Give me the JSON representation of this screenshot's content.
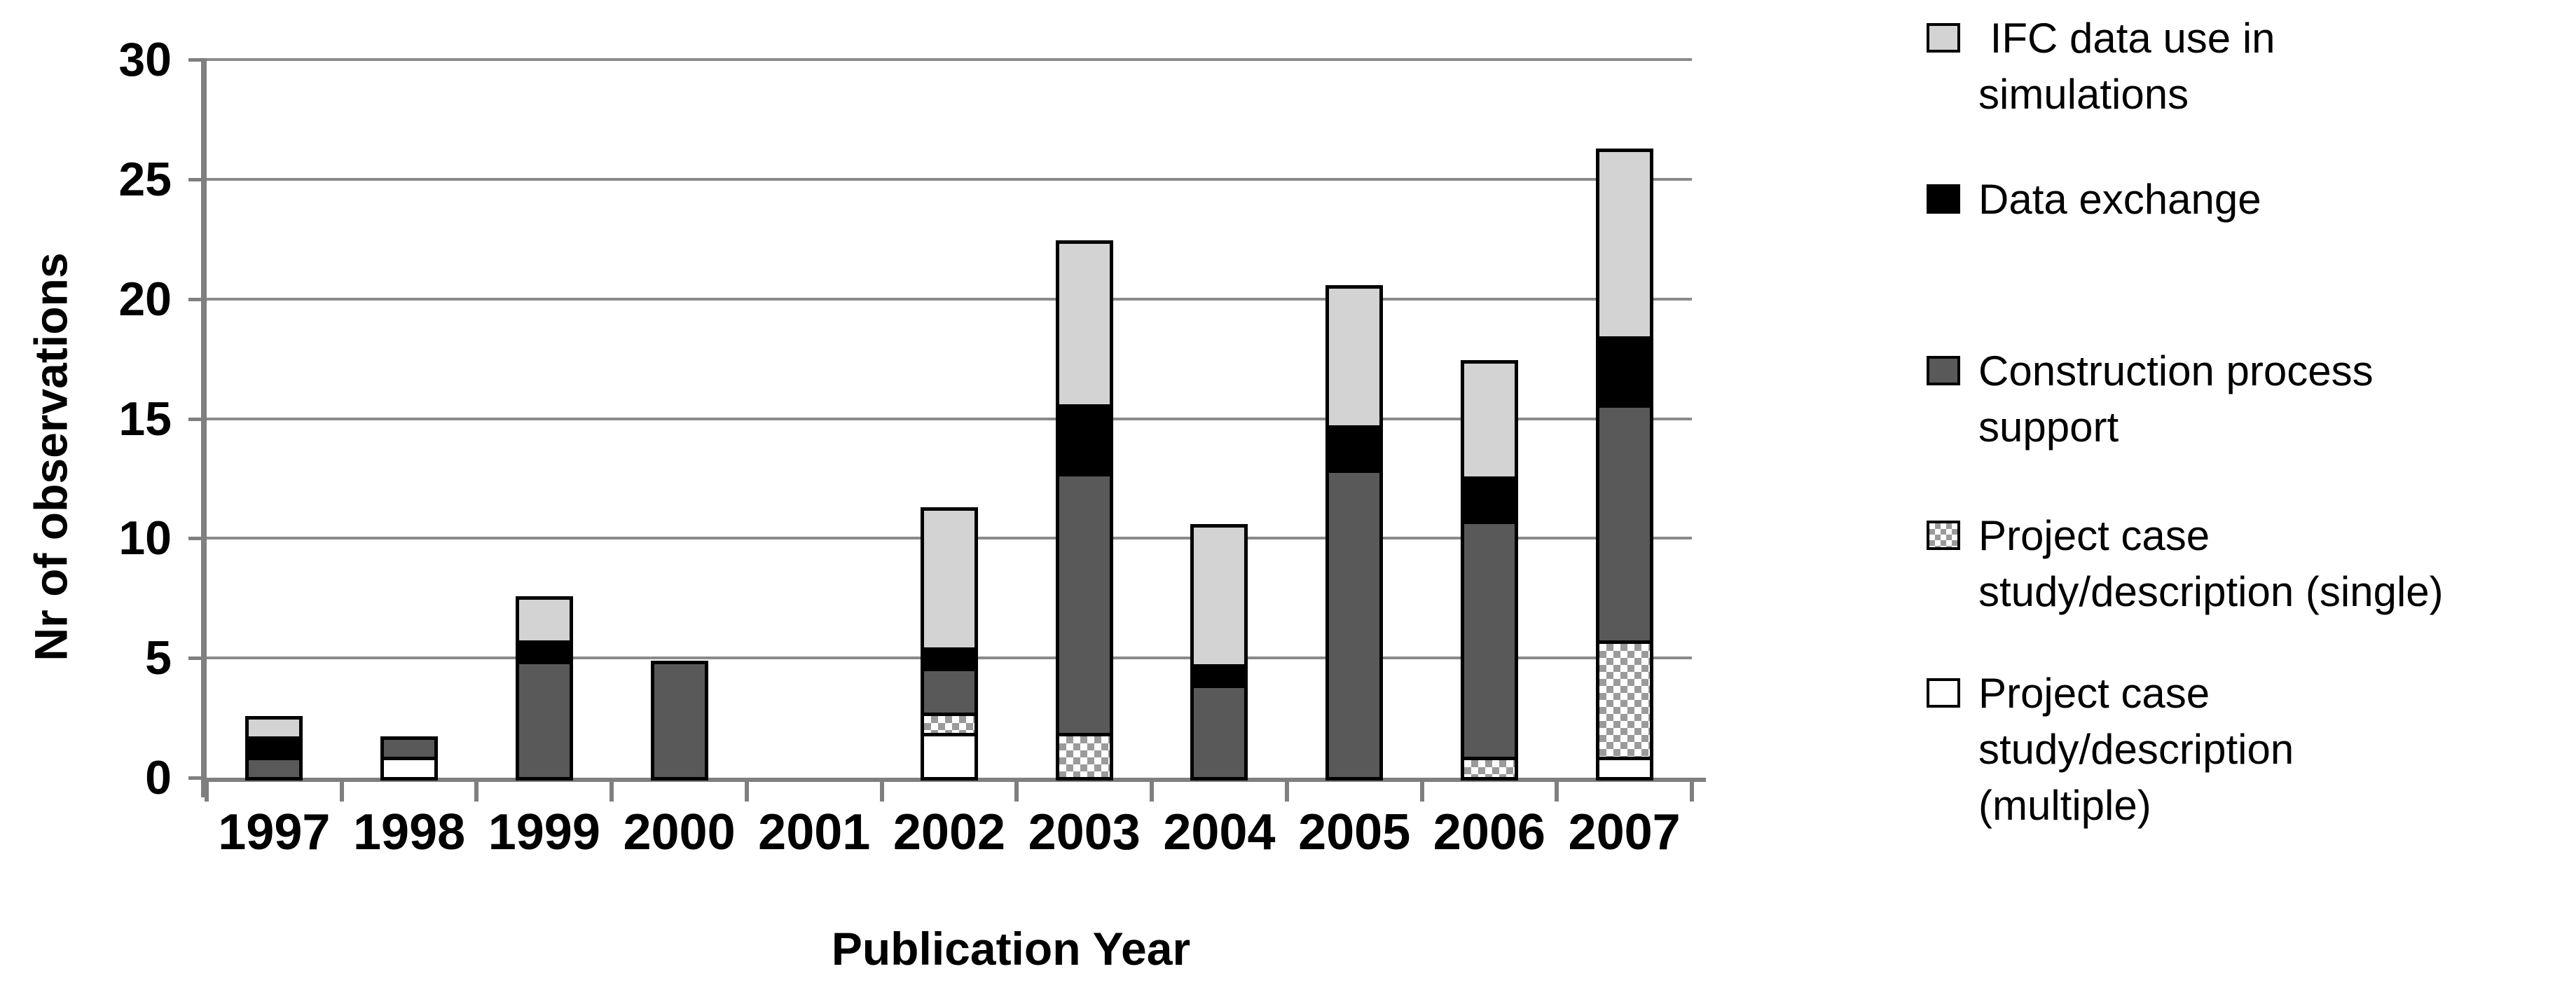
{
  "chart_data": {
    "type": "bar",
    "stacked": true,
    "xlabel": "Publication Year",
    "ylabel": "Nr of observations",
    "categories": [
      "1997",
      "1998",
      "1999",
      "2000",
      "2001",
      "2002",
      "2003",
      "2004",
      "2005",
      "2006",
      "2007"
    ],
    "y_ticks": [
      0,
      5,
      10,
      15,
      20,
      25,
      30
    ],
    "ylim": [
      0,
      30
    ],
    "grid": true,
    "legend_position": "right",
    "series": [
      {
        "key": "multiple",
        "name": "Project case study/description (multiple)",
        "pattern": "white",
        "values": [
          0,
          1,
          0,
          0,
          0,
          2,
          0,
          0,
          0,
          0,
          1
        ]
      },
      {
        "key": "single",
        "name": "Project case study/description (single)",
        "pattern": "checker",
        "values": [
          0,
          0,
          0,
          0,
          0,
          1,
          2,
          0,
          0,
          1,
          5
        ]
      },
      {
        "key": "construction",
        "name": "Construction process support",
        "pattern": "darkgray",
        "values": [
          1,
          1,
          5,
          5,
          0,
          2,
          11,
          4,
          13,
          10,
          10
        ]
      },
      {
        "key": "exchange",
        "name": "Data exchange",
        "pattern": "black",
        "values": [
          1,
          0,
          1,
          0,
          0,
          1,
          3,
          1,
          2,
          2,
          3
        ]
      },
      {
        "key": "ifc",
        "name": "IFC data use in simulations",
        "pattern": "lightgray",
        "values": [
          1,
          0,
          2,
          0,
          0,
          6,
          7,
          6,
          6,
          5,
          8
        ]
      }
    ],
    "totals": [
      3,
      2,
      8,
      5,
      0,
      12,
      23,
      11,
      21,
      18,
      27
    ]
  },
  "legend": {
    "items": [
      {
        "key": "ifc",
        "swatch": "lightgray",
        "lines": [
          " IFC data use in",
          "simulations"
        ]
      },
      {
        "key": "exchange",
        "swatch": "black",
        "lines": [
          "Data exchange"
        ]
      },
      {
        "key": "construction",
        "swatch": "darkgray",
        "lines": [
          "Construction process",
          "support"
        ]
      },
      {
        "key": "single",
        "swatch": "checker",
        "lines": [
          "Project case",
          "study/description (single)"
        ]
      },
      {
        "key": "multiple",
        "swatch": "white",
        "lines": [
          "Project case",
          "study/description",
          "(multiple)"
        ]
      }
    ]
  },
  "colors": {
    "light_gray": "#d3d3d3",
    "dark_gray": "#595959",
    "black": "#000000",
    "white": "#ffffff",
    "checker_gray": "#9a9a9a",
    "gridline": "#8a8a8a",
    "axis": "#7f7f7f",
    "text": "#000000"
  }
}
